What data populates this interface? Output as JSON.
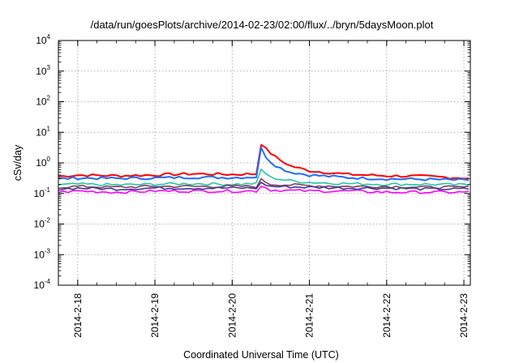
{
  "chart_data": {
    "type": "line",
    "title": "/data/run/goesPlots/archive/2014-02-23/02:00/flux/../bryn/5daysMoon.plot",
    "xlabel": "Coordinated Universal Time (UTC)",
    "ylabel": "cSv/day",
    "y_scale": "log",
    "ylim": [
      0.0001,
      10000
    ],
    "xlim": [
      "2014-02-17T18:00",
      "2014-02-23T02:00"
    ],
    "x_ticks": [
      "2014-2-18",
      "2014-2-19",
      "2014-2-20",
      "2014-2-21",
      "2014-2-22",
      "2014-2-23"
    ],
    "y_ticks": [
      {
        "base": "10",
        "exp": "-4"
      },
      {
        "base": "10",
        "exp": "-3"
      },
      {
        "base": "10",
        "exp": "-2"
      },
      {
        "base": "10",
        "exp": "-1"
      },
      {
        "base": "10",
        "exp": "0"
      },
      {
        "base": "10",
        "exp": "1"
      },
      {
        "base": "10",
        "exp": "2"
      },
      {
        "base": "10",
        "exp": "3"
      },
      {
        "base": "10",
        "exp": "4"
      }
    ],
    "grid": true,
    "colors": [
      "#ff0000",
      "#1e6cff",
      "#20c8a8",
      "#8b3a62",
      "#3b3b8f",
      "#ff00ff"
    ],
    "series": [
      {
        "color": "#ff0000",
        "points": [
          [
            "2014-02-17T18:00",
            0.36
          ],
          [
            "2014-02-18T00:00",
            0.4
          ],
          [
            "2014-02-18T12:00",
            0.38
          ],
          [
            "2014-02-19T00:00",
            0.4
          ],
          [
            "2014-02-19T12:00",
            0.44
          ],
          [
            "2014-02-20T00:00",
            0.42
          ],
          [
            "2014-02-20T08:00",
            0.44
          ],
          [
            "2014-02-20T09:00",
            4.2
          ],
          [
            "2014-02-20T11:00",
            2.5
          ],
          [
            "2014-02-20T14:00",
            1.4
          ],
          [
            "2014-02-20T18:00",
            0.8
          ],
          [
            "2014-02-21T00:00",
            0.55
          ],
          [
            "2014-02-21T12:00",
            0.42
          ],
          [
            "2014-02-22T00:00",
            0.38
          ],
          [
            "2014-02-22T12:00",
            0.36
          ],
          [
            "2014-02-23T00:00",
            0.32
          ],
          [
            "2014-02-23T02:00",
            0.32
          ]
        ]
      },
      {
        "color": "#1e6cff",
        "points": [
          [
            "2014-02-17T18:00",
            0.3
          ],
          [
            "2014-02-18T00:00",
            0.32
          ],
          [
            "2014-02-18T12:00",
            0.31
          ],
          [
            "2014-02-19T00:00",
            0.32
          ],
          [
            "2014-02-19T12:00",
            0.34
          ],
          [
            "2014-02-20T00:00",
            0.33
          ],
          [
            "2014-02-20T08:00",
            0.35
          ],
          [
            "2014-02-20T09:00",
            3.0
          ],
          [
            "2014-02-20T11:00",
            1.3
          ],
          [
            "2014-02-20T14:00",
            0.75
          ],
          [
            "2014-02-20T18:00",
            0.5
          ],
          [
            "2014-02-21T00:00",
            0.4
          ],
          [
            "2014-02-21T12:00",
            0.33
          ],
          [
            "2014-02-22T00:00",
            0.3
          ],
          [
            "2014-02-22T12:00",
            0.29
          ],
          [
            "2014-02-23T00:00",
            0.27
          ],
          [
            "2014-02-23T02:00",
            0.27
          ]
        ]
      },
      {
        "color": "#20c8a8",
        "points": [
          [
            "2014-02-17T18:00",
            0.19
          ],
          [
            "2014-02-18T00:00",
            0.2
          ],
          [
            "2014-02-18T12:00",
            0.19
          ],
          [
            "2014-02-19T00:00",
            0.2
          ],
          [
            "2014-02-19T12:00",
            0.21
          ],
          [
            "2014-02-20T00:00",
            0.2
          ],
          [
            "2014-02-20T08:00",
            0.21
          ],
          [
            "2014-02-20T09:00",
            0.6
          ],
          [
            "2014-02-20T12:00",
            0.33
          ],
          [
            "2014-02-20T18:00",
            0.26
          ],
          [
            "2014-02-21T00:00",
            0.23
          ],
          [
            "2014-02-21T12:00",
            0.21
          ],
          [
            "2014-02-22T00:00",
            0.2
          ],
          [
            "2014-02-22T12:00",
            0.2
          ],
          [
            "2014-02-23T00:00",
            0.19
          ],
          [
            "2014-02-23T02:00",
            0.19
          ]
        ]
      },
      {
        "color": "#8b3a62",
        "points": [
          [
            "2014-02-17T18:00",
            0.16
          ],
          [
            "2014-02-18T00:00",
            0.17
          ],
          [
            "2014-02-18T12:00",
            0.16
          ],
          [
            "2014-02-19T00:00",
            0.17
          ],
          [
            "2014-02-19T12:00",
            0.17
          ],
          [
            "2014-02-20T00:00",
            0.17
          ],
          [
            "2014-02-20T08:00",
            0.17
          ],
          [
            "2014-02-20T09:00",
            0.28
          ],
          [
            "2014-02-20T12:00",
            0.2
          ],
          [
            "2014-02-21T00:00",
            0.18
          ],
          [
            "2014-02-21T12:00",
            0.17
          ],
          [
            "2014-02-22T00:00",
            0.17
          ],
          [
            "2014-02-22T12:00",
            0.16
          ],
          [
            "2014-02-23T00:00",
            0.16
          ],
          [
            "2014-02-23T02:00",
            0.16
          ]
        ]
      },
      {
        "color": "#3b3b8f",
        "points": [
          [
            "2014-02-17T18:00",
            0.14
          ],
          [
            "2014-02-18T00:00",
            0.15
          ],
          [
            "2014-02-18T12:00",
            0.14
          ],
          [
            "2014-02-19T00:00",
            0.15
          ],
          [
            "2014-02-19T12:00",
            0.15
          ],
          [
            "2014-02-20T00:00",
            0.15
          ],
          [
            "2014-02-20T08:00",
            0.15
          ],
          [
            "2014-02-20T09:00",
            0.22
          ],
          [
            "2014-02-20T12:00",
            0.17
          ],
          [
            "2014-02-21T00:00",
            0.16
          ],
          [
            "2014-02-21T12:00",
            0.15
          ],
          [
            "2014-02-22T00:00",
            0.15
          ],
          [
            "2014-02-22T12:00",
            0.14
          ],
          [
            "2014-02-23T00:00",
            0.14
          ],
          [
            "2014-02-23T02:00",
            0.14
          ]
        ]
      },
      {
        "color": "#ff00ff",
        "points": [
          [
            "2014-02-17T18:00",
            0.11
          ],
          [
            "2014-02-18T00:00",
            0.12
          ],
          [
            "2014-02-18T12:00",
            0.11
          ],
          [
            "2014-02-19T00:00",
            0.12
          ],
          [
            "2014-02-19T12:00",
            0.12
          ],
          [
            "2014-02-20T00:00",
            0.12
          ],
          [
            "2014-02-20T08:00",
            0.12
          ],
          [
            "2014-02-20T09:00",
            0.18
          ],
          [
            "2014-02-20T12:00",
            0.13
          ],
          [
            "2014-02-21T00:00",
            0.12
          ],
          [
            "2014-02-21T12:00",
            0.12
          ],
          [
            "2014-02-22T00:00",
            0.11
          ],
          [
            "2014-02-22T12:00",
            0.11
          ],
          [
            "2014-02-23T00:00",
            0.11
          ],
          [
            "2014-02-23T02:00",
            0.11
          ]
        ]
      }
    ]
  }
}
